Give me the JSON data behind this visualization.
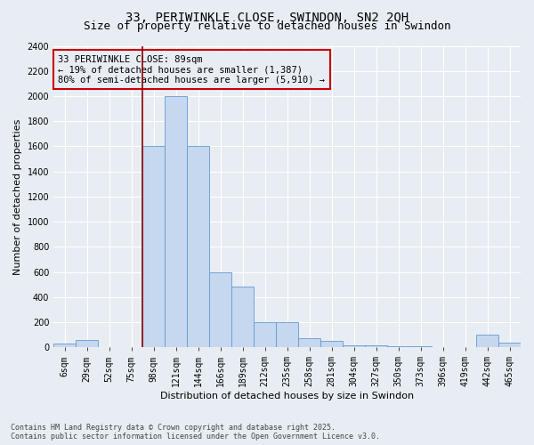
{
  "title1": "33, PERIWINKLE CLOSE, SWINDON, SN2 2QH",
  "title2": "Size of property relative to detached houses in Swindon",
  "xlabel": "Distribution of detached houses by size in Swindon",
  "ylabel": "Number of detached properties",
  "categories": [
    "6sqm",
    "29sqm",
    "52sqm",
    "75sqm",
    "98sqm",
    "121sqm",
    "144sqm",
    "166sqm",
    "189sqm",
    "212sqm",
    "235sqm",
    "258sqm",
    "281sqm",
    "304sqm",
    "327sqm",
    "350sqm",
    "373sqm",
    "396sqm",
    "419sqm",
    "442sqm",
    "465sqm"
  ],
  "bar_heights": [
    30,
    55,
    0,
    0,
    1600,
    2000,
    1600,
    600,
    480,
    200,
    200,
    75,
    50,
    15,
    15,
    10,
    5,
    0,
    0,
    100,
    40
  ],
  "bar_color": "#c5d8ef",
  "bar_edge_color": "#6699cc",
  "background_color": "#e8edf4",
  "grid_color": "#ffffff",
  "vline_x_index": 4,
  "vline_color": "#8b0000",
  "annotation_text_line1": "33 PERIWINKLE CLOSE: 89sqm",
  "annotation_text_line2": "← 19% of detached houses are smaller (1,387)",
  "annotation_text_line3": "80% of semi-detached houses are larger (5,910) →",
  "annotation_box_color": "#cc0000",
  "ylim": [
    0,
    2400
  ],
  "yticks": [
    0,
    200,
    400,
    600,
    800,
    1000,
    1200,
    1400,
    1600,
    1800,
    2000,
    2200,
    2400
  ],
  "footer1": "Contains HM Land Registry data © Crown copyright and database right 2025.",
  "footer2": "Contains public sector information licensed under the Open Government Licence v3.0.",
  "title1_fontsize": 10,
  "title2_fontsize": 9,
  "ylabel_fontsize": 8,
  "xlabel_fontsize": 8,
  "tick_fontsize": 7,
  "annotation_fontsize": 7.5,
  "footer_fontsize": 6
}
